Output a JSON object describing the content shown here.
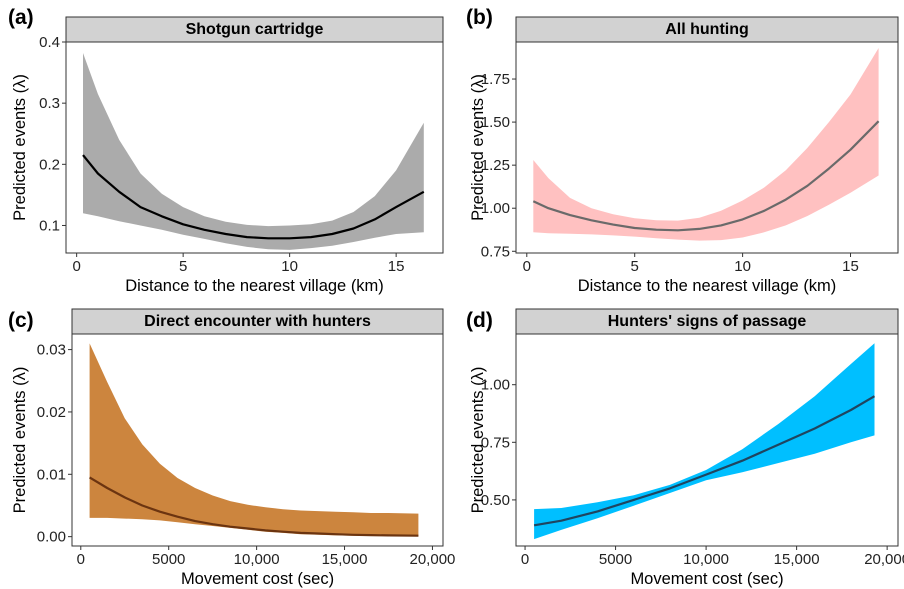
{
  "chart_data": [
    {
      "type": "line",
      "panel_label": "(a)",
      "title": "Shotgun cartridge",
      "xlabel": "Distance to the nearest village (km)",
      "ylabel": "Predicted events (λ)",
      "xlim": [
        -0.5,
        17.2
      ],
      "ylim": [
        0.055,
        0.4
      ],
      "xticks": [
        0,
        5,
        10,
        15
      ],
      "xtick_labels": [
        "0",
        "5",
        "10",
        "15"
      ],
      "yticks": [
        0.1,
        0.2,
        0.3,
        0.4
      ],
      "ytick_labels": [
        "0.1",
        "0.2",
        "0.3",
        "0.4"
      ],
      "fill_color": "#ababab",
      "line_color": "#000000",
      "grid": false,
      "series": [
        {
          "x": [
            0.3,
            1,
            2,
            3,
            4,
            5,
            6,
            7,
            8,
            9,
            10,
            11,
            12,
            13,
            14,
            15,
            16.3
          ],
          "y": [
            0.215,
            0.185,
            0.155,
            0.13,
            0.115,
            0.102,
            0.093,
            0.086,
            0.081,
            0.079,
            0.079,
            0.081,
            0.086,
            0.095,
            0.11,
            0.13,
            0.155
          ],
          "lower": [
            0.12,
            0.115,
            0.107,
            0.1,
            0.093,
            0.085,
            0.078,
            0.071,
            0.065,
            0.061,
            0.06,
            0.063,
            0.067,
            0.073,
            0.08,
            0.086,
            0.089
          ],
          "upper": [
            0.382,
            0.315,
            0.24,
            0.185,
            0.152,
            0.13,
            0.115,
            0.106,
            0.101,
            0.099,
            0.1,
            0.102,
            0.108,
            0.122,
            0.148,
            0.19,
            0.268
          ]
        }
      ]
    },
    {
      "type": "line",
      "panel_label": "(b)",
      "title": "All hunting",
      "xlabel": "Distance to the nearest village (km)",
      "ylabel": "Predicted events (λ)",
      "xlim": [
        -0.5,
        17.2
      ],
      "ylim": [
        0.74,
        1.965
      ],
      "xticks": [
        0,
        5,
        10,
        15
      ],
      "xtick_labels": [
        "0",
        "5",
        "10",
        "15"
      ],
      "yticks": [
        0.75,
        1.0,
        1.25,
        1.5,
        1.75
      ],
      "ytick_labels": [
        "0.75",
        "1.00",
        "1.25",
        "1.50",
        "1.75"
      ],
      "fill_color": "#ffc1c1",
      "line_color": "#6a6a6a",
      "grid": false,
      "series": [
        {
          "x": [
            0.3,
            1,
            2,
            3,
            4,
            5,
            6,
            7,
            8,
            9,
            10,
            11,
            12,
            13,
            14,
            15,
            16.3
          ],
          "y": [
            1.04,
            1.0,
            0.96,
            0.93,
            0.905,
            0.885,
            0.875,
            0.872,
            0.88,
            0.9,
            0.935,
            0.985,
            1.05,
            1.13,
            1.23,
            1.34,
            1.505
          ],
          "lower": [
            0.86,
            0.855,
            0.852,
            0.848,
            0.842,
            0.835,
            0.826,
            0.818,
            0.812,
            0.815,
            0.83,
            0.86,
            0.9,
            0.955,
            1.02,
            1.09,
            1.19
          ],
          "upper": [
            1.28,
            1.175,
            1.06,
            1.0,
            0.965,
            0.942,
            0.93,
            0.928,
            0.945,
            0.985,
            1.045,
            1.12,
            1.22,
            1.35,
            1.5,
            1.66,
            1.93
          ]
        }
      ]
    },
    {
      "type": "line",
      "panel_label": "(c)",
      "title": "Direct encounter with hunters",
      "xlabel": "Movement cost (sec)",
      "ylabel": "Predicted events (λ)",
      "xlim": [
        -500,
        20600
      ],
      "ylim": [
        -0.0015,
        0.0325
      ],
      "xticks": [
        0,
        5000,
        10000,
        15000,
        20000
      ],
      "xtick_labels": [
        "0",
        "5000",
        "10,000",
        "15,000",
        "20,000"
      ],
      "yticks": [
        0.0,
        0.01,
        0.02,
        0.03
      ],
      "ytick_labels": [
        "0.00",
        "0.01",
        "0.02",
        "0.03"
      ],
      "fill_color": "#cc853e",
      "line_color": "#6b3410",
      "grid": false,
      "series": [
        {
          "x": [
            500,
            1500,
            2500,
            3500,
            4500,
            5500,
            6500,
            7500,
            8500,
            9500,
            10500,
            11500,
            12500,
            13500,
            14500,
            15500,
            16500,
            17500,
            19200
          ],
          "y": [
            0.0095,
            0.0078,
            0.0063,
            0.005,
            0.004,
            0.0032,
            0.0025,
            0.002,
            0.0016,
            0.0013,
            0.001,
            0.0008,
            0.0006,
            0.0005,
            0.0004,
            0.0003,
            0.00025,
            0.0002,
            0.00015
          ],
          "lower": [
            0.003,
            0.003,
            0.0029,
            0.0028,
            0.0026,
            0.0023,
            0.002,
            0.0017,
            0.0014,
            0.0011,
            0.0008,
            0.0006,
            0.0004,
            0.0003,
            0.0002,
            0.00015,
            0.0001,
            8e-05,
            5e-05
          ],
          "upper": [
            0.031,
            0.0248,
            0.019,
            0.0148,
            0.0117,
            0.0094,
            0.0078,
            0.0066,
            0.0057,
            0.0051,
            0.0047,
            0.0044,
            0.0042,
            0.0041,
            0.004,
            0.0039,
            0.0038,
            0.0038,
            0.0037
          ]
        }
      ]
    },
    {
      "type": "line",
      "panel_label": "(d)",
      "title": "Hunters' signs of passage",
      "xlabel": "Movement cost (sec)",
      "ylabel": "Predicted events (λ)",
      "xlim": [
        -500,
        20600
      ],
      "ylim": [
        0.3,
        1.22
      ],
      "xticks": [
        0,
        5000,
        10000,
        15000,
        20000
      ],
      "xtick_labels": [
        "0",
        "5000",
        "10,000",
        "15,000",
        "20,000"
      ],
      "yticks": [
        0.5,
        0.75,
        1.0
      ],
      "ytick_labels": [
        "0.50",
        "0.75",
        "1.00"
      ],
      "fill_color": "#00bfff",
      "line_color": "#1f4560",
      "grid": false,
      "series": [
        {
          "x": [
            500,
            2000,
            4000,
            6000,
            8000,
            10000,
            12000,
            14000,
            16000,
            18000,
            19300
          ],
          "y": [
            0.39,
            0.41,
            0.45,
            0.5,
            0.55,
            0.61,
            0.67,
            0.74,
            0.81,
            0.89,
            0.95
          ],
          "lower": [
            0.33,
            0.37,
            0.42,
            0.475,
            0.53,
            0.585,
            0.62,
            0.66,
            0.7,
            0.75,
            0.78
          ],
          "upper": [
            0.46,
            0.465,
            0.49,
            0.52,
            0.565,
            0.63,
            0.72,
            0.83,
            0.95,
            1.09,
            1.18
          ]
        }
      ]
    }
  ]
}
